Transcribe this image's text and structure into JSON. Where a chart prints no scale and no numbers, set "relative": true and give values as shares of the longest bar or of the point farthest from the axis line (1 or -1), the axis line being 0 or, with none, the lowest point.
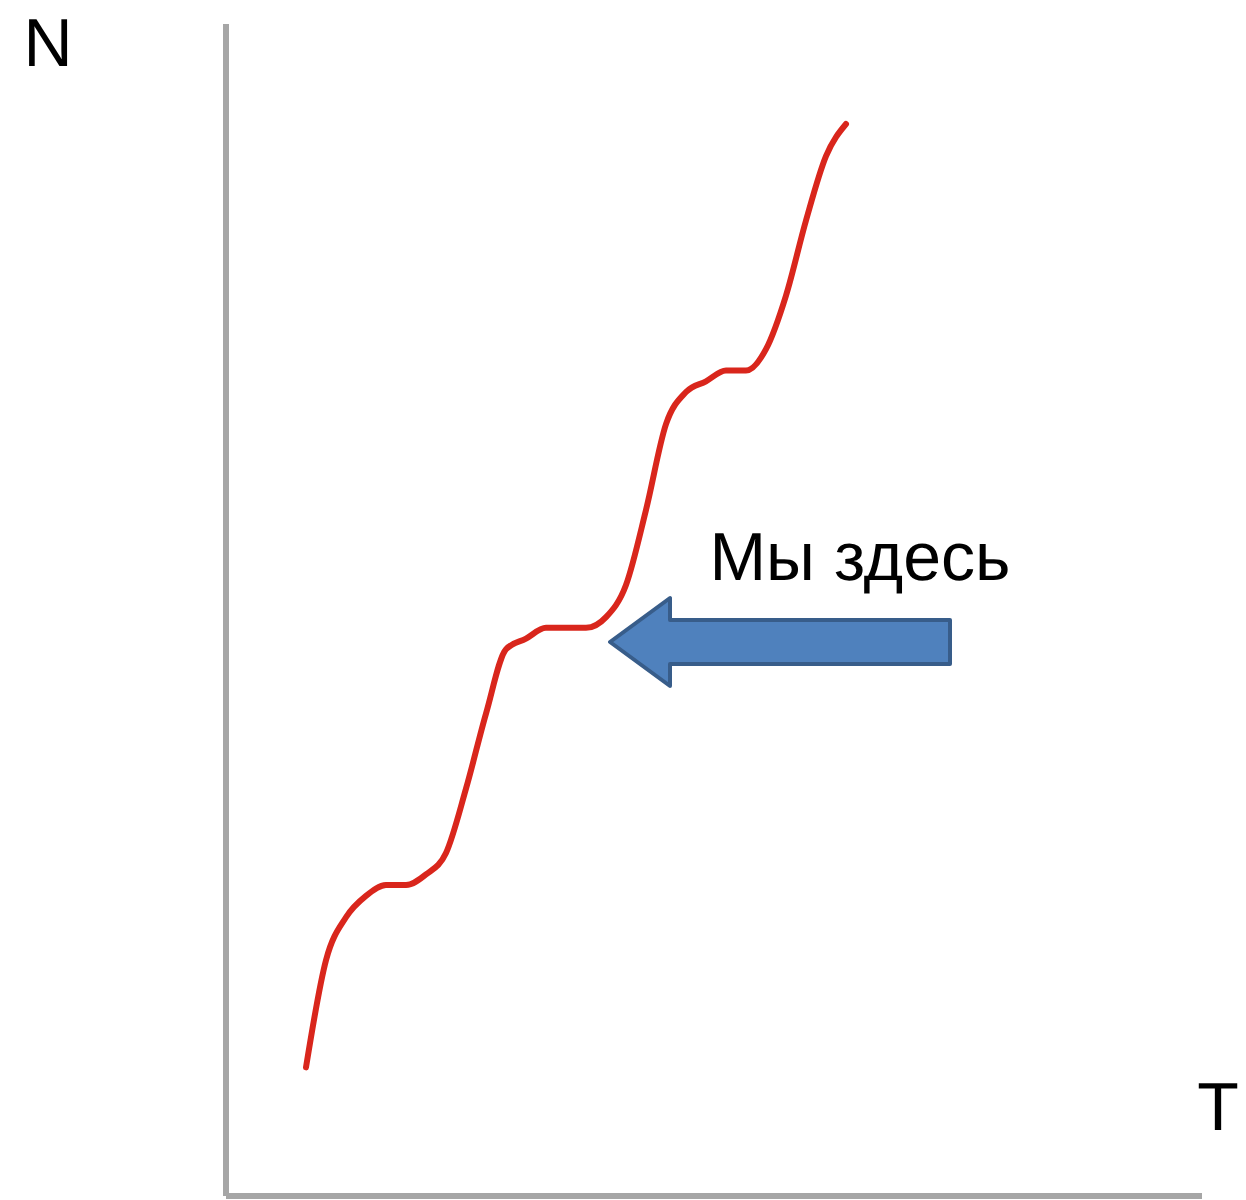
{
  "chart_data": {
    "type": "line",
    "xlabel": "T",
    "ylabel": "N",
    "relative": true,
    "categories": [
      null,
      null,
      null,
      null,
      null,
      null,
      null,
      null,
      null,
      null,
      null,
      null,
      null,
      null,
      null,
      null,
      null,
      null,
      null,
      null,
      null,
      null,
      null,
      null,
      null,
      null,
      null,
      null,
      null,
      null,
      null,
      null,
      null,
      null,
      null,
      null,
      null,
      null,
      null,
      null,
      null,
      null,
      null,
      null,
      null,
      null,
      null,
      null,
      null,
      null,
      null
    ],
    "series": [
      {
        "color": "#d9261c",
        "values": [
          null,
          null,
          null,
          null,
          0.12,
          0.22,
          0.26,
          0.28,
          0.29,
          0.29,
          0.3,
          0.32,
          0.38,
          0.45,
          0.51,
          0.52,
          0.53,
          0.53,
          0.53,
          0.54,
          0.57,
          0.64,
          0.72,
          0.75,
          0.76,
          0.77,
          0.77,
          0.79,
          0.84,
          0.91,
          0.97,
          1,
          null,
          null,
          null,
          null,
          null,
          null,
          null,
          null,
          null,
          null,
          null,
          null,
          null,
          null,
          null,
          null,
          null,
          null,
          null
        ]
      }
    ],
    "annotations": [
      "Мы здесь"
    ]
  }
}
